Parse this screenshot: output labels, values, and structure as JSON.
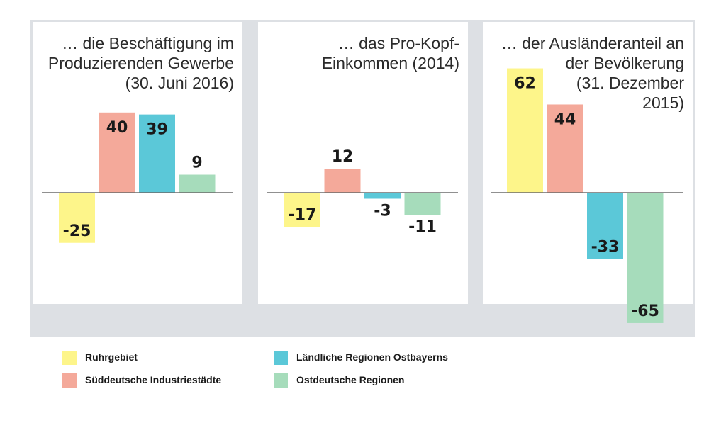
{
  "chart_data": [
    {
      "type": "bar",
      "title": "… die Beschäftigung im\nProduzierenden Gewerbe\n(30. Juni 2016)",
      "categories": [
        "Ruhrgebiet",
        "Süddeutsche Industriestädte",
        "Ländliche Regionen Ostbayerns",
        "Ostdeutsche Regionen"
      ],
      "values": [
        -25,
        40,
        39,
        9
      ],
      "data_labels": [
        "-25",
        "40",
        "39",
        "9"
      ],
      "ylim": [
        -65,
        62
      ],
      "grid": false
    },
    {
      "type": "bar",
      "title": "… das Pro-Kopf-\nEinkommen (2014)",
      "categories": [
        "Ruhrgebiet",
        "Süddeutsche Industriestädte",
        "Ländliche Regionen Ostbayerns",
        "Ostdeutsche Regionen"
      ],
      "values": [
        -17,
        12,
        -3,
        -11
      ],
      "data_labels": [
        "-17",
        "12",
        "-3",
        "-11"
      ],
      "ylim": [
        -65,
        62
      ],
      "grid": false
    },
    {
      "type": "bar",
      "title": "… der Ausländeranteil an\nder Bevölkerung\n(31. Dezember\n2015)",
      "categories": [
        "Ruhrgebiet",
        "Süddeutsche Industriestädte",
        "Ländliche Regionen Ostbayerns",
        "Ostdeutsche Regionen"
      ],
      "values": [
        62,
        44,
        -33,
        -65
      ],
      "data_labels": [
        "62",
        "44",
        "-33",
        "-65"
      ],
      "ylim": [
        -65,
        62
      ],
      "grid": false
    }
  ],
  "legend": {
    "placement": "bottom-left",
    "items": [
      {
        "label": "Ruhrgebiet",
        "color": "#fdf58a"
      },
      {
        "label": "Ländliche Regionen Ostbayerns",
        "color": "#5bc8d8"
      },
      {
        "label": "Süddeutsche Industriestädte",
        "color": "#f4a99a"
      },
      {
        "label": "Ostdeutsche Regionen",
        "color": "#a6dcbb"
      }
    ]
  },
  "series_colors": [
    "#fdf58a",
    "#f4a99a",
    "#5bc8d8",
    "#a6dcbb"
  ]
}
